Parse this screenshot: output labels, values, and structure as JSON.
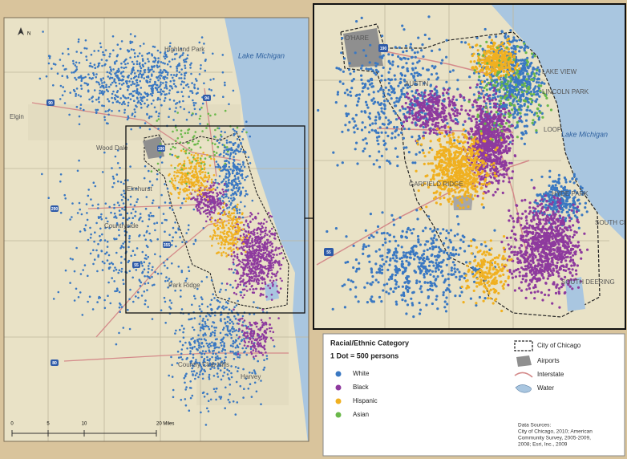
{
  "map": {
    "labels": [
      "Highland Park",
      "Lake Michigan",
      "Elgin",
      "Wood Dale",
      "Elmhurst",
      "Countryside",
      "Country Club Hills",
      "Harvey",
      "Park Ridge"
    ],
    "shields": [
      "90",
      "94",
      "290",
      "55",
      "355",
      "80",
      "190"
    ],
    "north": "N",
    "scale": [
      "0",
      "5",
      "10",
      "20 Miles"
    ]
  },
  "inset": {
    "labels": [
      "O'HARE",
      "LAKE VIEW",
      "LINCOLN PARK",
      "LOOP",
      "Lake Michigan",
      "GARFIELD RIDGE",
      "HYDE PARK",
      "SOUTH CHICAGO",
      "SOUTH DEERING",
      "AUSTIN"
    ],
    "shields": [
      "190",
      "55"
    ]
  },
  "legend": {
    "title": "Racial/Ethnic Category",
    "scale": "1 Dot = 500 persons",
    "categories": [
      {
        "name": "White",
        "color": "#3a78c2"
      },
      {
        "name": "Black",
        "color": "#8e3a9e"
      },
      {
        "name": "Hispanic",
        "color": "#f0b020"
      },
      {
        "name": "Asian",
        "color": "#6ab84a"
      }
    ],
    "features": [
      "City of Chicago",
      "Airports",
      "Interstate",
      "Water"
    ],
    "sources": [
      "Data Sources:",
      "City of Chicago, 2010; American",
      "Community Survey, 2005-2009,",
      "2008; Esri, Inc., 2009"
    ]
  }
}
